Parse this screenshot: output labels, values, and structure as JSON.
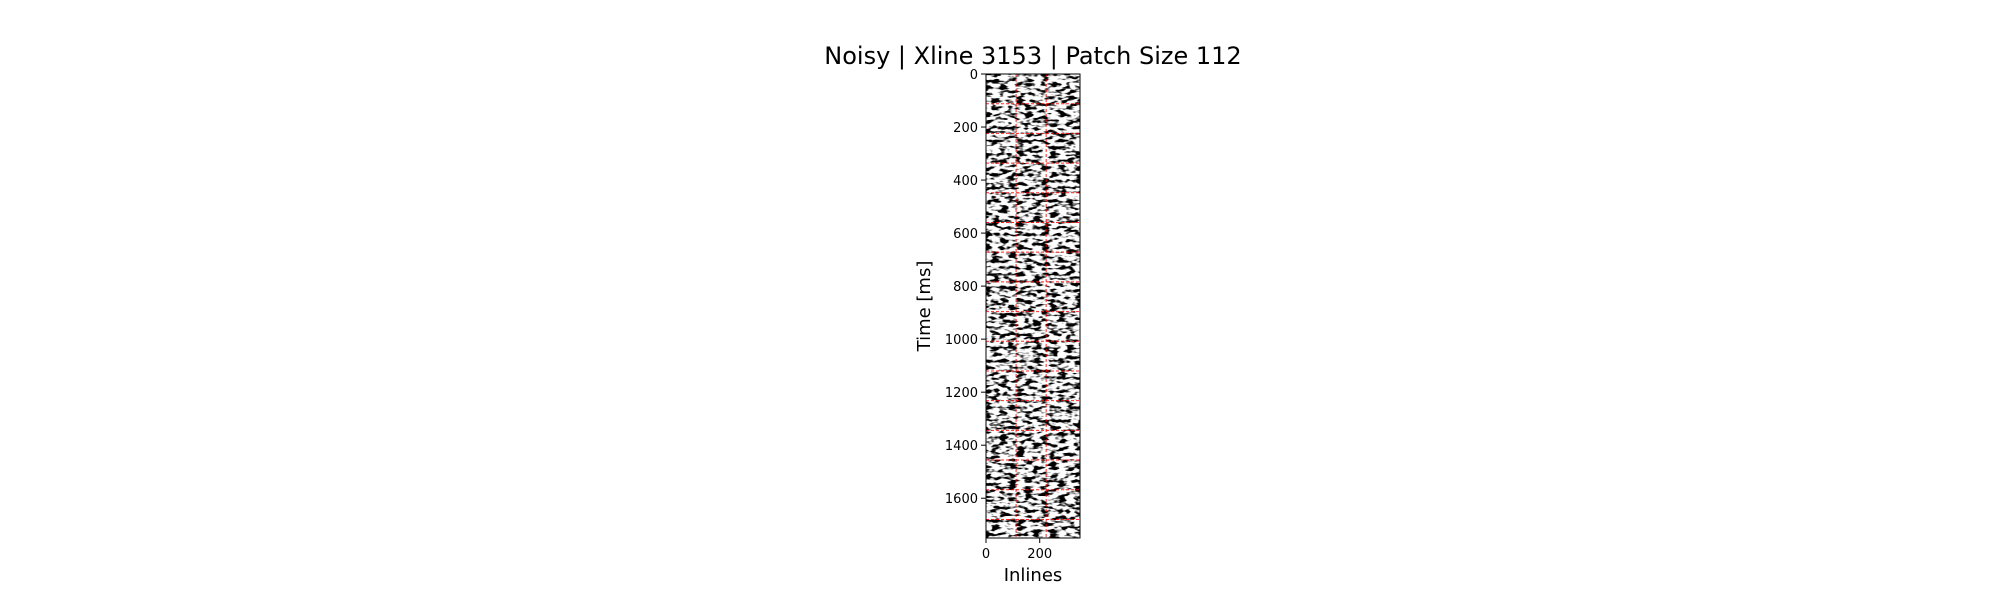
{
  "chart_data": {
    "type": "heatmap",
    "title": "Noisy | Xline 3153 | Patch Size 112",
    "xlabel": "Inlines",
    "ylabel": "Time [ms]",
    "xlim": [
      0,
      350
    ],
    "ylim": [
      1750,
      0
    ],
    "x_ticks": [
      0,
      200
    ],
    "y_ticks": [
      0,
      200,
      400,
      600,
      800,
      1000,
      1200,
      1400,
      1600
    ],
    "colormap": "seismic grayscale (black/white)",
    "patch_grid_color": "#ff0000",
    "patch_size": 112,
    "patch_boundaries_x": [
      112,
      224
    ],
    "patch_boundaries_y": [
      112,
      224,
      336,
      448,
      560,
      672,
      784,
      896,
      1008,
      1120,
      1232,
      1344,
      1456,
      1568,
      1680
    ],
    "grid": false
  }
}
